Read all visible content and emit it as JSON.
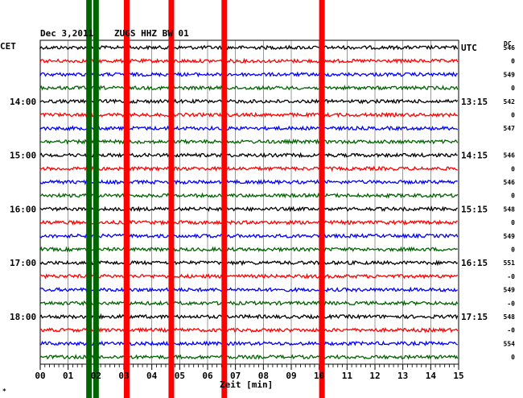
{
  "header": {
    "date": "Dec 3,2011",
    "station": "ZUGS HHZ BW 01",
    "left_tz": "CET",
    "right_tz": "UTC",
    "dc_label": "DC"
  },
  "footer": {
    "xlabel": "Zeit [min]",
    "corner_mark": "*"
  },
  "colors": {
    "black": "#000000",
    "red": "#ff0000",
    "blue": "#0000ff",
    "green": "#006400",
    "grid": "#000000"
  },
  "chart_data": {
    "type": "line",
    "title": "Dec 3,2011   ZUGS HHZ BW 01",
    "xlabel": "Zeit [min]",
    "xlim": [
      0,
      15
    ],
    "x_ticks": [
      "00",
      "01",
      "02",
      "03",
      "04",
      "05",
      "06",
      "07",
      "08",
      "09",
      "10",
      "11",
      "12",
      "13",
      "14",
      "15"
    ],
    "trace_count": 24,
    "trace_color_cycle": [
      "black",
      "red",
      "blue",
      "green"
    ],
    "left_time_labels": [
      {
        "trace": 4,
        "label": "14:00"
      },
      {
        "trace": 8,
        "label": "15:00"
      },
      {
        "trace": 12,
        "label": "16:00"
      },
      {
        "trace": 16,
        "label": "17:00"
      },
      {
        "trace": 20,
        "label": "18:00"
      }
    ],
    "right_time_labels": [
      {
        "trace": 0,
        "label": "UTC"
      },
      {
        "trace": 4,
        "label": "13:15"
      },
      {
        "trace": 8,
        "label": "14:15"
      },
      {
        "trace": 12,
        "label": "15:15"
      },
      {
        "trace": 16,
        "label": "16:15"
      },
      {
        "trace": 20,
        "label": "17:15"
      }
    ],
    "dc_values": [
      "546",
      "0",
      "549",
      "0",
      "542",
      "0",
      "547",
      "",
      "546",
      "0",
      "546",
      "0",
      "548",
      "0",
      "549",
      "0",
      "551",
      "-0",
      "549",
      "-0",
      "548",
      "-0",
      "554",
      "0"
    ],
    "events": [
      {
        "x": 1.75,
        "color": "green"
      },
      {
        "x": 2.0,
        "color": "green"
      },
      {
        "x": 3.1,
        "color": "red"
      },
      {
        "x": 4.7,
        "color": "red"
      },
      {
        "x": 6.6,
        "color": "red"
      },
      {
        "x": 10.1,
        "color": "red"
      }
    ]
  }
}
